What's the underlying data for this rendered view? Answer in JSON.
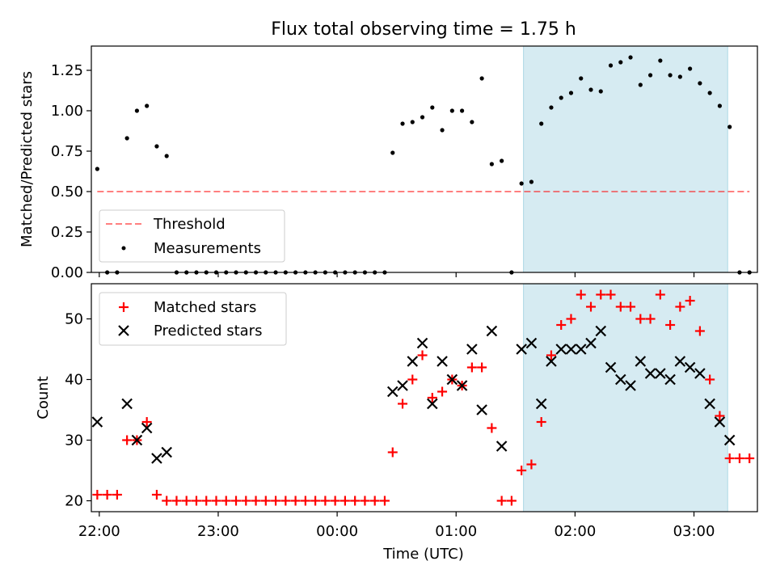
{
  "figure": {
    "title": "Flux total observing time = 1.75 h",
    "xlabel": "Time (UTC)"
  },
  "colors": {
    "highlight": "#add8e6",
    "threshold": "#ff0000",
    "measurements": "#000000",
    "matched": "#ff0000",
    "predicted": "#000000"
  },
  "chart_data": [
    {
      "type": "scatter",
      "panel": "top",
      "ylabel": "Matched/Predicted stars",
      "ylim": [
        0,
        1.4
      ],
      "yticks": [
        0.0,
        0.25,
        0.5,
        0.75,
        1.0,
        1.25
      ],
      "ytick_labels": [
        "0.00",
        "0.25",
        "0.50",
        "0.75",
        "1.00",
        "1.25"
      ],
      "legend_position": "lower-left",
      "highlight_span": [
        "01:34",
        "03:17"
      ],
      "threshold": {
        "name": "Threshold",
        "y": 0.5,
        "x_range": [
          "21:59",
          "03:28"
        ]
      },
      "series": [
        {
          "name": "Measurements",
          "points": [
            [
              "21:59",
              0.64
            ],
            [
              "22:04",
              0.0
            ],
            [
              "22:09",
              0.0
            ],
            [
              "22:14",
              0.83
            ],
            [
              "22:19",
              1.0
            ],
            [
              "22:24",
              1.03
            ],
            [
              "22:29",
              0.78
            ],
            [
              "22:34",
              0.72
            ],
            [
              "22:39",
              0.0
            ],
            [
              "22:44",
              0.0
            ],
            [
              "22:49",
              0.0
            ],
            [
              "22:54",
              0.0
            ],
            [
              "22:59",
              0.0
            ],
            [
              "23:04",
              0.0
            ],
            [
              "23:09",
              0.0
            ],
            [
              "23:14",
              0.0
            ],
            [
              "23:19",
              0.0
            ],
            [
              "23:24",
              0.0
            ],
            [
              "23:29",
              0.0
            ],
            [
              "23:34",
              0.0
            ],
            [
              "23:39",
              0.0
            ],
            [
              "23:44",
              0.0
            ],
            [
              "23:49",
              0.0
            ],
            [
              "23:54",
              0.0
            ],
            [
              "23:59",
              0.0
            ],
            [
              "00:04",
              0.0
            ],
            [
              "00:09",
              0.0
            ],
            [
              "00:14",
              0.0
            ],
            [
              "00:19",
              0.0
            ],
            [
              "00:24",
              0.0
            ],
            [
              "00:28",
              0.74
            ],
            [
              "00:33",
              0.92
            ],
            [
              "00:38",
              0.93
            ],
            [
              "00:43",
              0.96
            ],
            [
              "00:48",
              1.02
            ],
            [
              "00:53",
              0.88
            ],
            [
              "00:58",
              1.0
            ],
            [
              "01:03",
              1.0
            ],
            [
              "01:08",
              0.93
            ],
            [
              "01:13",
              1.2
            ],
            [
              "01:18",
              0.67
            ],
            [
              "01:23",
              0.69
            ],
            [
              "01:28",
              0.0
            ],
            [
              "01:33",
              0.55
            ],
            [
              "01:38",
              0.56
            ],
            [
              "01:43",
              0.92
            ],
            [
              "01:48",
              1.02
            ],
            [
              "01:53",
              1.08
            ],
            [
              "01:58",
              1.11
            ],
            [
              "02:03",
              1.2
            ],
            [
              "02:08",
              1.13
            ],
            [
              "02:13",
              1.12
            ],
            [
              "02:18",
              1.28
            ],
            [
              "02:23",
              1.3
            ],
            [
              "02:28",
              1.33
            ],
            [
              "02:33",
              1.16
            ],
            [
              "02:38",
              1.22
            ],
            [
              "02:43",
              1.31
            ],
            [
              "02:48",
              1.22
            ],
            [
              "02:53",
              1.21
            ],
            [
              "02:58",
              1.26
            ],
            [
              "03:03",
              1.17
            ],
            [
              "03:08",
              1.11
            ],
            [
              "03:13",
              1.03
            ],
            [
              "03:18",
              0.9
            ],
            [
              "03:23",
              0.0
            ],
            [
              "03:28",
              0.0
            ]
          ]
        }
      ]
    },
    {
      "type": "scatter",
      "panel": "bottom",
      "ylabel": "Count",
      "ylim": [
        18.2,
        55.8
      ],
      "yticks": [
        20,
        30,
        40,
        50
      ],
      "ytick_labels": [
        "20",
        "30",
        "40",
        "50"
      ],
      "xticks": [
        "22:00",
        "23:00",
        "00:00",
        "01:00",
        "02:00",
        "03:00"
      ],
      "legend_position": "upper-left",
      "highlight_span": [
        "01:34",
        "03:17"
      ],
      "series": [
        {
          "name": "Matched stars",
          "marker": "plus",
          "points": [
            [
              "21:59",
              21
            ],
            [
              "22:04",
              21
            ],
            [
              "22:09",
              21
            ],
            [
              "22:14",
              30
            ],
            [
              "22:19",
              30
            ],
            [
              "22:24",
              33
            ],
            [
              "22:29",
              21
            ],
            [
              "22:34",
              20
            ],
            [
              "22:39",
              20
            ],
            [
              "22:44",
              20
            ],
            [
              "22:49",
              20
            ],
            [
              "22:54",
              20
            ],
            [
              "22:59",
              20
            ],
            [
              "23:04",
              20
            ],
            [
              "23:09",
              20
            ],
            [
              "23:14",
              20
            ],
            [
              "23:19",
              20
            ],
            [
              "23:24",
              20
            ],
            [
              "23:29",
              20
            ],
            [
              "23:34",
              20
            ],
            [
              "23:39",
              20
            ],
            [
              "23:44",
              20
            ],
            [
              "23:49",
              20
            ],
            [
              "23:54",
              20
            ],
            [
              "23:59",
              20
            ],
            [
              "00:04",
              20
            ],
            [
              "00:09",
              20
            ],
            [
              "00:14",
              20
            ],
            [
              "00:19",
              20
            ],
            [
              "00:24",
              20
            ],
            [
              "00:28",
              28
            ],
            [
              "00:33",
              36
            ],
            [
              "00:38",
              40
            ],
            [
              "00:43",
              44
            ],
            [
              "00:48",
              37
            ],
            [
              "00:53",
              38
            ],
            [
              "00:58",
              40
            ],
            [
              "01:03",
              39
            ],
            [
              "01:08",
              42
            ],
            [
              "01:13",
              42
            ],
            [
              "01:18",
              32
            ],
            [
              "01:23",
              20
            ],
            [
              "01:28",
              20
            ],
            [
              "01:33",
              25
            ],
            [
              "01:38",
              26
            ],
            [
              "01:43",
              33
            ],
            [
              "01:48",
              44
            ],
            [
              "01:53",
              49
            ],
            [
              "01:58",
              50
            ],
            [
              "02:03",
              54
            ],
            [
              "02:08",
              52
            ],
            [
              "02:13",
              54
            ],
            [
              "02:18",
              54
            ],
            [
              "02:23",
              52
            ],
            [
              "02:28",
              52
            ],
            [
              "02:33",
              50
            ],
            [
              "02:38",
              50
            ],
            [
              "02:43",
              54
            ],
            [
              "02:48",
              49
            ],
            [
              "02:53",
              52
            ],
            [
              "02:58",
              53
            ],
            [
              "03:03",
              48
            ],
            [
              "03:08",
              40
            ],
            [
              "03:13",
              34
            ],
            [
              "03:18",
              27
            ],
            [
              "03:23",
              27
            ],
            [
              "03:28",
              27
            ]
          ]
        },
        {
          "name": "Predicted stars",
          "marker": "x",
          "points": [
            [
              "21:59",
              33
            ],
            [
              "22:14",
              36
            ],
            [
              "22:19",
              30
            ],
            [
              "22:24",
              32
            ],
            [
              "22:29",
              27
            ],
            [
              "22:34",
              28
            ],
            [
              "00:28",
              38
            ],
            [
              "00:33",
              39
            ],
            [
              "00:38",
              43
            ],
            [
              "00:43",
              46
            ],
            [
              "00:48",
              36
            ],
            [
              "00:53",
              43
            ],
            [
              "00:58",
              40
            ],
            [
              "01:03",
              39
            ],
            [
              "01:08",
              45
            ],
            [
              "01:13",
              35
            ],
            [
              "01:18",
              48
            ],
            [
              "01:23",
              29
            ],
            [
              "01:33",
              45
            ],
            [
              "01:38",
              46
            ],
            [
              "01:43",
              36
            ],
            [
              "01:48",
              43
            ],
            [
              "01:53",
              45
            ],
            [
              "01:58",
              45
            ],
            [
              "02:03",
              45
            ],
            [
              "02:08",
              46
            ],
            [
              "02:13",
              48
            ],
            [
              "02:18",
              42
            ],
            [
              "02:23",
              40
            ],
            [
              "02:28",
              39
            ],
            [
              "02:33",
              43
            ],
            [
              "02:38",
              41
            ],
            [
              "02:43",
              41
            ],
            [
              "02:48",
              40
            ],
            [
              "02:53",
              43
            ],
            [
              "02:58",
              42
            ],
            [
              "03:03",
              41
            ],
            [
              "03:08",
              36
            ],
            [
              "03:13",
              33
            ],
            [
              "03:18",
              30
            ]
          ]
        }
      ]
    }
  ]
}
